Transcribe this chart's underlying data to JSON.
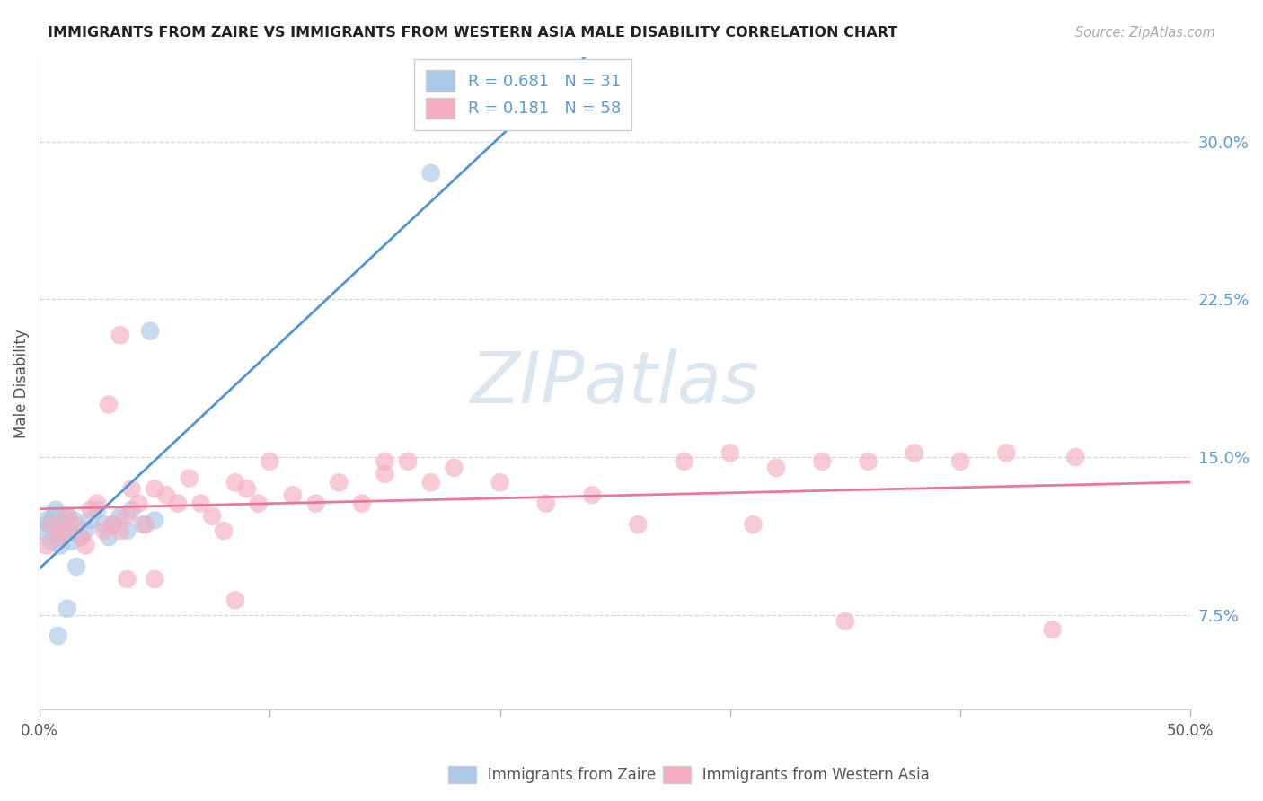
{
  "title": "IMMIGRANTS FROM ZAIRE VS IMMIGRANTS FROM WESTERN ASIA MALE DISABILITY CORRELATION CHART",
  "source": "Source: ZipAtlas.com",
  "ylabel": "Male Disability",
  "ytick_values": [
    0.075,
    0.15,
    0.225,
    0.3
  ],
  "ytick_labels": [
    "7.5%",
    "15.0%",
    "22.5%",
    "30.0%"
  ],
  "xmin": 0.0,
  "xmax": 0.5,
  "ymin": 0.03,
  "ymax": 0.34,
  "zaire_R": 0.681,
  "zaire_N": 31,
  "western_asia_R": 0.181,
  "western_asia_N": 58,
  "zaire_color": "#aac8e8",
  "western_asia_color": "#f5aec0",
  "zaire_line_color": "#4f94d4",
  "western_asia_line_color": "#e87898",
  "tick_color": "#5b9bd5",
  "watermark_color": "#dce6f0",
  "grid_color": "#d5d5d5",
  "zaire_x": [
    0.002,
    0.003,
    0.004,
    0.005,
    0.006,
    0.007,
    0.008,
    0.009,
    0.01,
    0.011,
    0.012,
    0.013,
    0.014,
    0.015,
    0.016,
    0.018,
    0.02,
    0.022,
    0.025,
    0.028,
    0.03,
    0.032,
    0.035,
    0.038,
    0.04,
    0.045,
    0.05,
    0.008,
    0.012,
    0.048,
    0.17
  ],
  "zaire_y": [
    0.115,
    0.12,
    0.118,
    0.11,
    0.122,
    0.125,
    0.112,
    0.108,
    0.118,
    0.115,
    0.122,
    0.115,
    0.11,
    0.12,
    0.098,
    0.112,
    0.115,
    0.12,
    0.125,
    0.118,
    0.112,
    0.118,
    0.122,
    0.115,
    0.125,
    0.118,
    0.12,
    0.065,
    0.078,
    0.21,
    0.285
  ],
  "western_asia_x": [
    0.003,
    0.005,
    0.008,
    0.01,
    0.012,
    0.015,
    0.018,
    0.02,
    0.022,
    0.025,
    0.028,
    0.03,
    0.032,
    0.035,
    0.038,
    0.04,
    0.043,
    0.046,
    0.05,
    0.055,
    0.06,
    0.065,
    0.07,
    0.075,
    0.08,
    0.085,
    0.09,
    0.095,
    0.1,
    0.11,
    0.12,
    0.13,
    0.14,
    0.15,
    0.16,
    0.17,
    0.18,
    0.2,
    0.22,
    0.24,
    0.26,
    0.28,
    0.3,
    0.32,
    0.34,
    0.36,
    0.38,
    0.4,
    0.42,
    0.45,
    0.035,
    0.038,
    0.05,
    0.085,
    0.15,
    0.31,
    0.35,
    0.44
  ],
  "western_asia_y": [
    0.108,
    0.118,
    0.112,
    0.115,
    0.122,
    0.118,
    0.112,
    0.108,
    0.125,
    0.128,
    0.115,
    0.175,
    0.118,
    0.115,
    0.122,
    0.135,
    0.128,
    0.118,
    0.135,
    0.132,
    0.128,
    0.14,
    0.128,
    0.122,
    0.115,
    0.138,
    0.135,
    0.128,
    0.148,
    0.132,
    0.128,
    0.138,
    0.128,
    0.142,
    0.148,
    0.138,
    0.145,
    0.138,
    0.128,
    0.132,
    0.118,
    0.148,
    0.152,
    0.145,
    0.148,
    0.148,
    0.152,
    0.148,
    0.152,
    0.15,
    0.208,
    0.092,
    0.092,
    0.082,
    0.148,
    0.118,
    0.072,
    0.068
  ]
}
